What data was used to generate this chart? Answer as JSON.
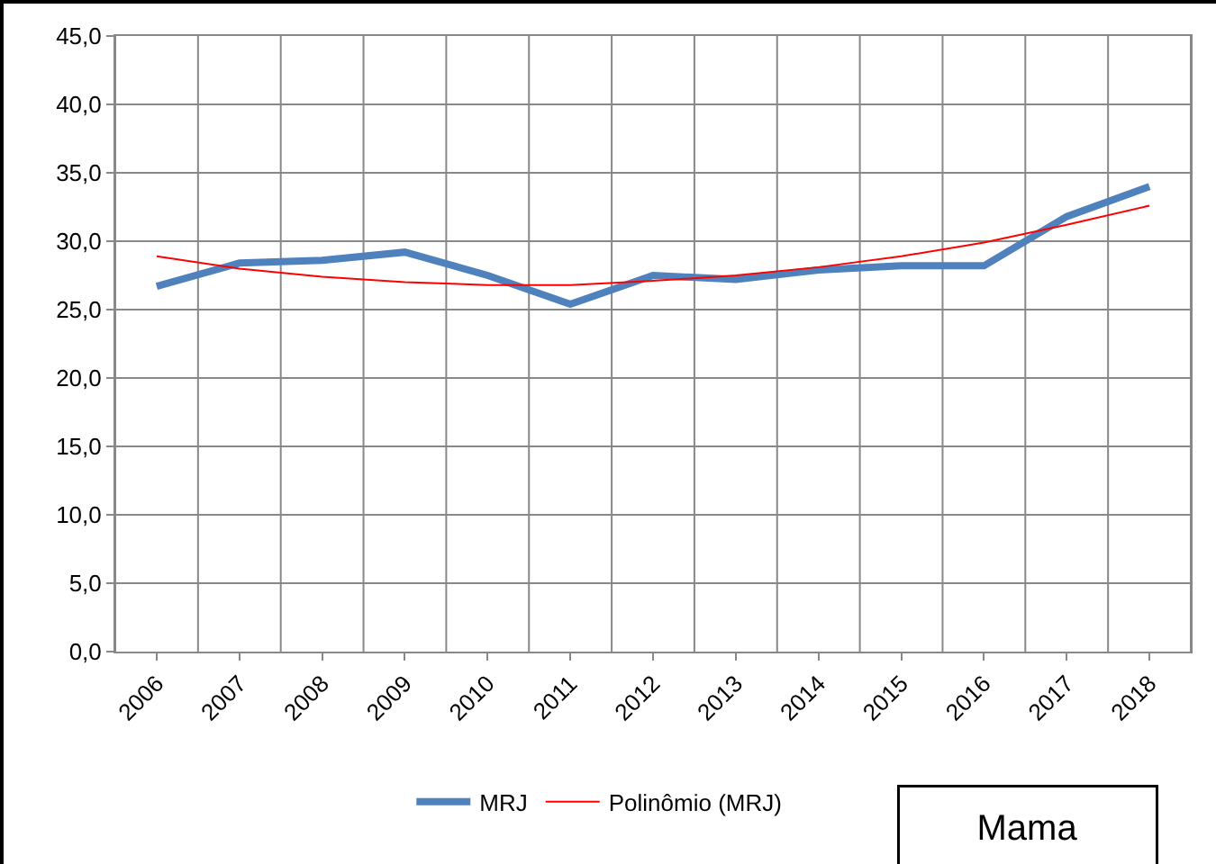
{
  "chart_data": {
    "type": "line",
    "categories": [
      "2006",
      "2007",
      "2008",
      "2009",
      "2010",
      "2011",
      "2012",
      "2013",
      "2014",
      "2015",
      "2016",
      "2017",
      "2018"
    ],
    "series": [
      {
        "name": "MRJ",
        "color": "#4f81bd",
        "values": [
          26.7,
          28.4,
          28.6,
          29.2,
          27.5,
          25.4,
          27.5,
          27.2,
          27.9,
          28.2,
          28.2,
          31.8,
          34.0
        ]
      },
      {
        "name": "Polinômio (MRJ)",
        "color": "#ff0000",
        "values": [
          28.9,
          28.0,
          27.4,
          27.0,
          26.8,
          26.8,
          27.1,
          27.5,
          28.1,
          28.9,
          29.9,
          31.2,
          32.6
        ]
      }
    ],
    "ylim": [
      0,
      45
    ],
    "yticks": [
      {
        "value": 0,
        "label": "0,0"
      },
      {
        "value": 5,
        "label": "5,0"
      },
      {
        "value": 10,
        "label": "10,0"
      },
      {
        "value": 15,
        "label": "15,0"
      },
      {
        "value": 20,
        "label": "20,0"
      },
      {
        "value": 25,
        "label": "25,0"
      },
      {
        "value": 30,
        "label": "30,0"
      },
      {
        "value": 35,
        "label": "35,0"
      },
      {
        "value": 40,
        "label": "40,0"
      },
      {
        "value": 45,
        "label": "45,0"
      }
    ],
    "grid": true,
    "legend": "bottom",
    "marker": "none",
    "line_style": "solid",
    "annotations": [
      "Mama"
    ]
  }
}
